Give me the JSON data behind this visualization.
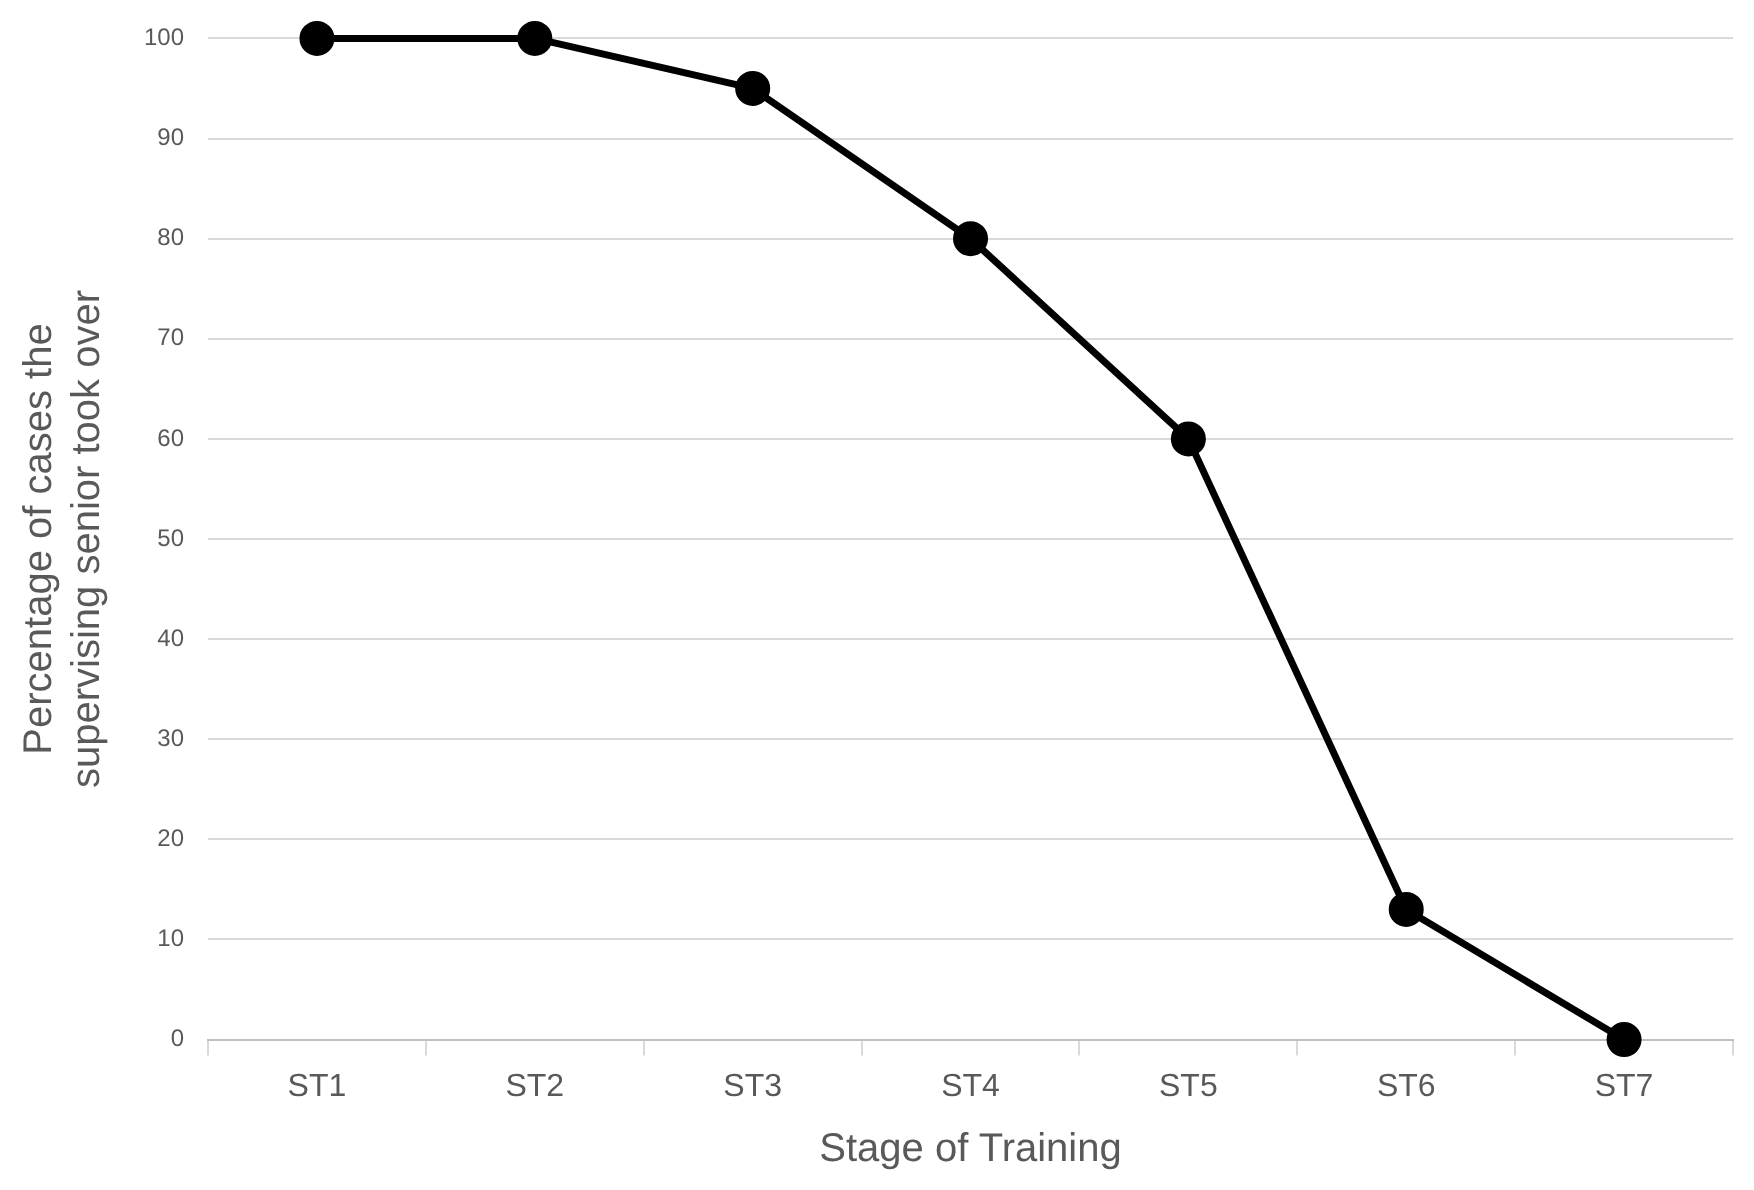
{
  "chart_data": {
    "type": "line",
    "xlabel": "Stage of Training",
    "ylabel": "Percentage of cases the supervising senior took over",
    "categories": [
      "ST1",
      "ST2",
      "ST3",
      "ST4",
      "ST5",
      "ST6",
      "ST7"
    ],
    "series": [
      {
        "color": "#000000",
        "values": [
          100,
          100,
          95,
          80,
          60,
          13,
          0
        ]
      }
    ],
    "ylim": [
      0,
      100
    ],
    "yticks": [
      0,
      10,
      20,
      30,
      40,
      50,
      60,
      70,
      80,
      90,
      100
    ],
    "grid": "y",
    "legend": false,
    "marker": "circle",
    "line_style": "solid"
  }
}
